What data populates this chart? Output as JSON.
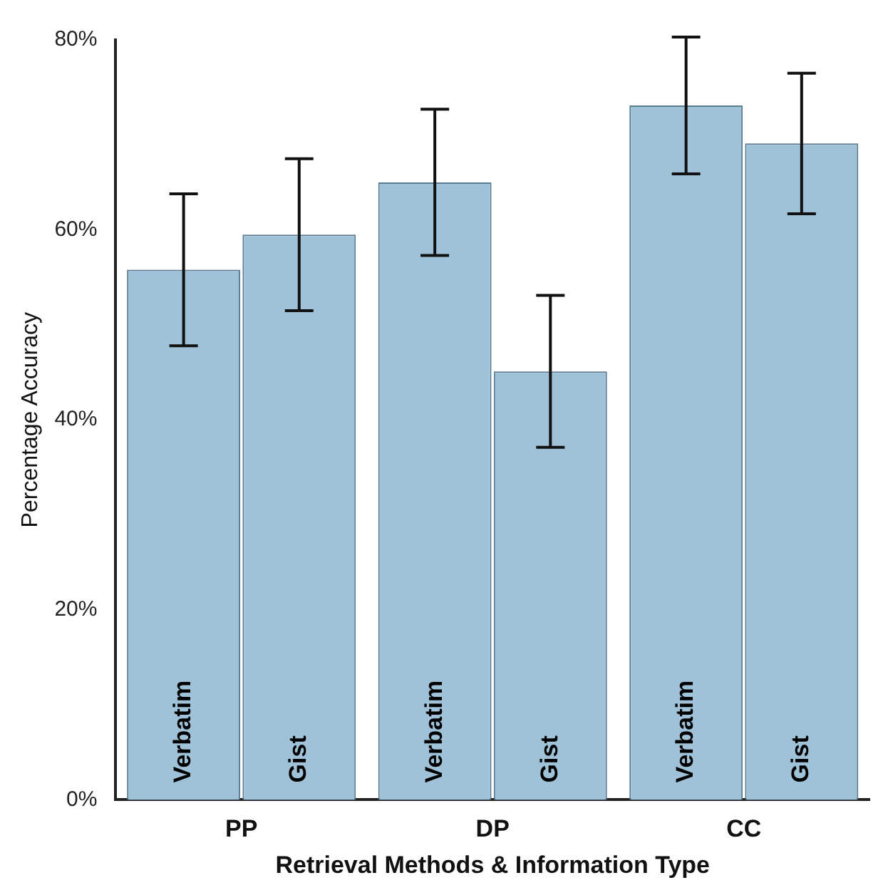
{
  "chart_data": {
    "type": "bar",
    "xlabel": "Retrieval Methods & Information Type",
    "ylabel": "Percentage Accuracy",
    "categories": [
      "PP",
      "DP",
      "CC"
    ],
    "series": [
      {
        "name": "Verbatim",
        "color": "#9fc2d8",
        "values": [
          55.8,
          65,
          73.1
        ],
        "errors": [
          8,
          7.7,
          7.2
        ]
      },
      {
        "name": "Gist",
        "color": "#9fc2d8",
        "values": [
          59.5,
          45.1,
          69.1
        ],
        "errors": [
          8,
          8,
          7.4
        ]
      }
    ],
    "ylim": [
      0,
      80
    ],
    "yticks": [
      {
        "value": 0,
        "label": "0%"
      },
      {
        "value": 20,
        "label": "20%"
      },
      {
        "value": 40,
        "label": "40%"
      },
      {
        "value": 60,
        "label": "60%"
      },
      {
        "value": 80,
        "label": "80%"
      }
    ],
    "grid": false,
    "legend": false
  }
}
